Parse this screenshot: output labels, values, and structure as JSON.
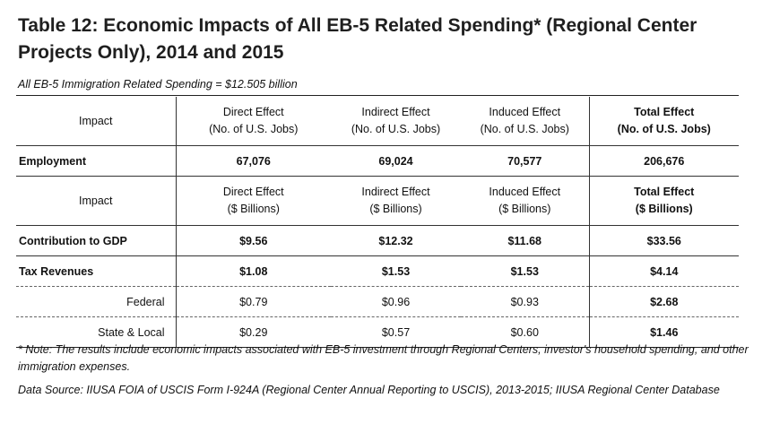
{
  "title": "Table 12: Economic Impacts of All EB-5 Related Spending* (Regional Center Projects Only), 2014 and 2015",
  "subtitle": "All EB-5 Immigration Related Spending = $12.505 billion",
  "jobs_header": {
    "impact": "Impact",
    "direct": "Direct Effect",
    "direct_unit": "(No. of U.S. Jobs)",
    "indirect": "Indirect Effect",
    "indirect_unit": "(No. of U.S. Jobs)",
    "induced": "Induced Effect",
    "induced_unit": "(No. of U.S. Jobs)",
    "total": "Total Effect",
    "total_unit": "(No. of U.S. Jobs)"
  },
  "employment": {
    "label": "Employment",
    "direct": "67,076",
    "indirect": "69,024",
    "induced": "70,577",
    "total": "206,676"
  },
  "dollar_header": {
    "impact": "Impact",
    "direct": "Direct Effect",
    "direct_unit": "($ Billions)",
    "indirect": "Indirect Effect",
    "indirect_unit": "($ Billions)",
    "induced": "Induced Effect",
    "induced_unit": "($ Billions)",
    "total": "Total Effect",
    "total_unit": "($ Billions)"
  },
  "gdp": {
    "label": "Contribution to GDP",
    "direct": "$9.56",
    "indirect": "$12.32",
    "induced": "$11.68",
    "total": "$33.56"
  },
  "tax": {
    "label": "Tax Revenues",
    "direct": "$1.08",
    "indirect": "$1.53",
    "induced": "$1.53",
    "total": "$4.14"
  },
  "federal": {
    "label": "Federal",
    "direct": "$0.79",
    "indirect": "$0.96",
    "induced": "$0.93",
    "total": "$2.68"
  },
  "state_local": {
    "label": "State & Local",
    "direct": "$0.29",
    "indirect": "$0.57",
    "induced": "$0.60",
    "total": "$1.46"
  },
  "note": "* Note: The results include economic impacts associated with EB-5 investment through Regional Centers, investor's household spending, and other immigration expenses.",
  "source": "Data Source: IIUSA FOIA of USCIS Form I-924A (Regional Center Annual Reporting to USCIS), 2013-2015; IIUSA Regional Center Database"
}
